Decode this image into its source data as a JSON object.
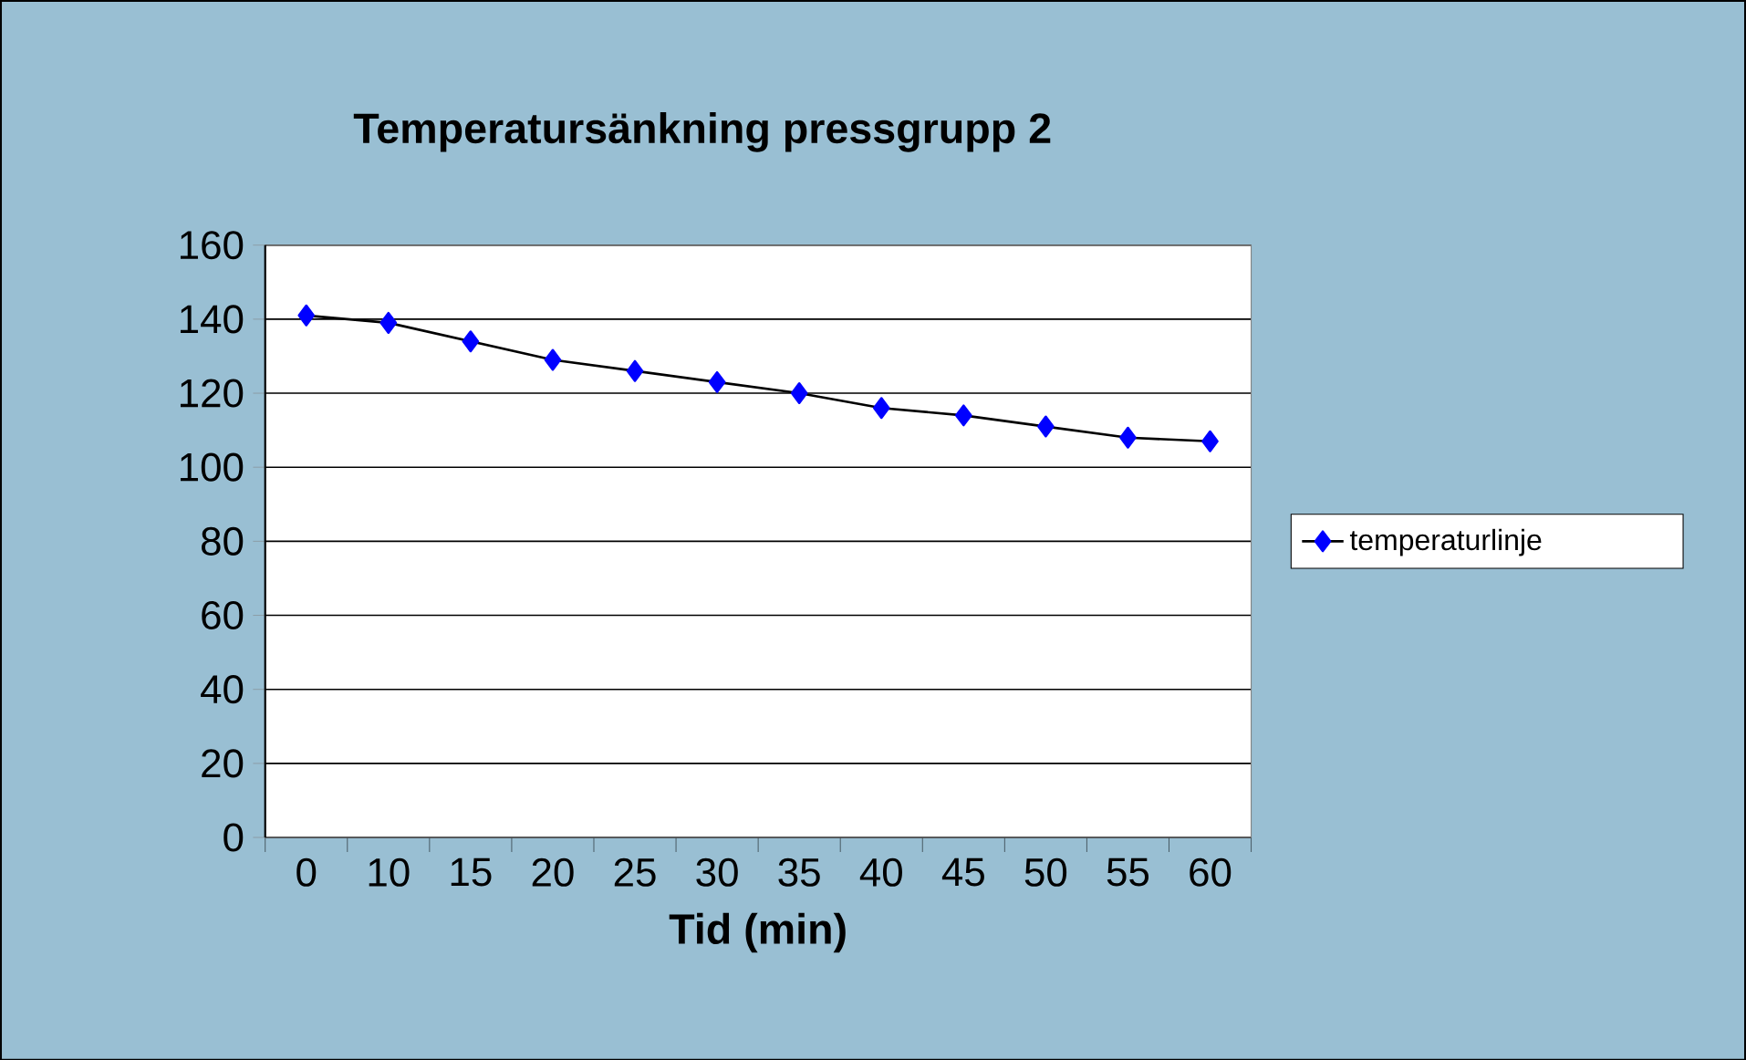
{
  "chart_data": {
    "type": "line",
    "title": "Temperatursänkning pressgrupp 2",
    "xlabel": "Tid (min)",
    "categories": [
      "0",
      "10",
      "15",
      "20",
      "25",
      "30",
      "35",
      "40",
      "45",
      "50",
      "55",
      "60"
    ],
    "series": [
      {
        "name": "temperaturlinje",
        "color": "#0000ff",
        "values": [
          141,
          139,
          134,
          129,
          126,
          123,
          120,
          116,
          114,
          111,
          108,
          107
        ]
      }
    ],
    "ylim": [
      0,
      160
    ],
    "yticks": [
      0,
      20,
      40,
      60,
      80,
      100,
      120,
      140,
      160
    ],
    "grid": "y",
    "legend": "right",
    "marker": "diamond",
    "line_style": "solid"
  }
}
